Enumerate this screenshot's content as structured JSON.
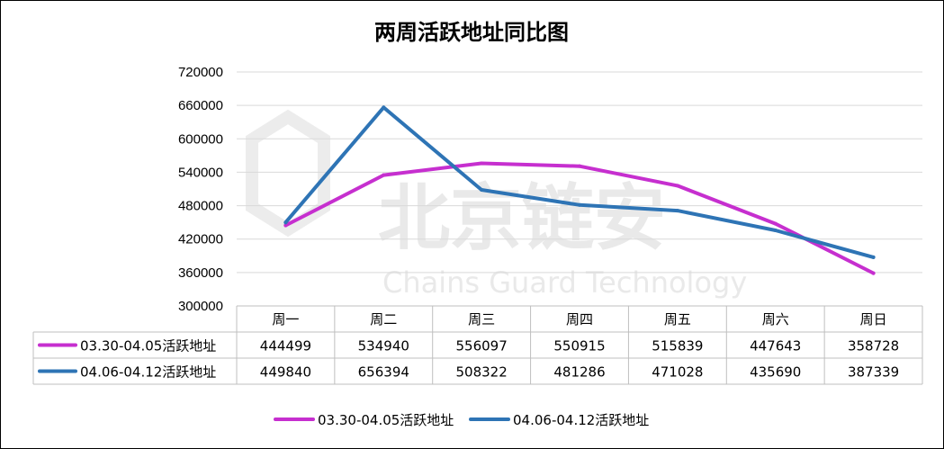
{
  "chart_data": {
    "type": "line",
    "title": "两周活跃地址同比图",
    "categories": [
      "周一",
      "周二",
      "周三",
      "周四",
      "周五",
      "周六",
      "周日"
    ],
    "series": [
      {
        "name": "03.30-04.05活跃地址",
        "color": "#c62fcf",
        "values": [
          444499,
          534940,
          556097,
          550915,
          515839,
          447643,
          358728
        ],
        "labels": [
          "444499",
          "534940",
          "556097",
          "550915",
          "515839",
          "447643",
          "358728"
        ]
      },
      {
        "name": "04.06-04.12活跃地址",
        "color": "#2e74b5",
        "values": [
          449840,
          656394,
          508322,
          481286,
          471028,
          435690,
          387339
        ],
        "labels": [
          "449840",
          "656394",
          "508322",
          "481286",
          "471028",
          "435690",
          "387339"
        ]
      }
    ],
    "ylim": [
      300000,
      720000
    ],
    "yticks": [
      "300000",
      "360000",
      "420000",
      "480000",
      "540000",
      "600000",
      "660000",
      "720000"
    ],
    "legend_position": "bottom",
    "data_table": true,
    "grid": true
  },
  "watermark": {
    "main": "北京链安",
    "sub": "Chains Guard Technology"
  }
}
